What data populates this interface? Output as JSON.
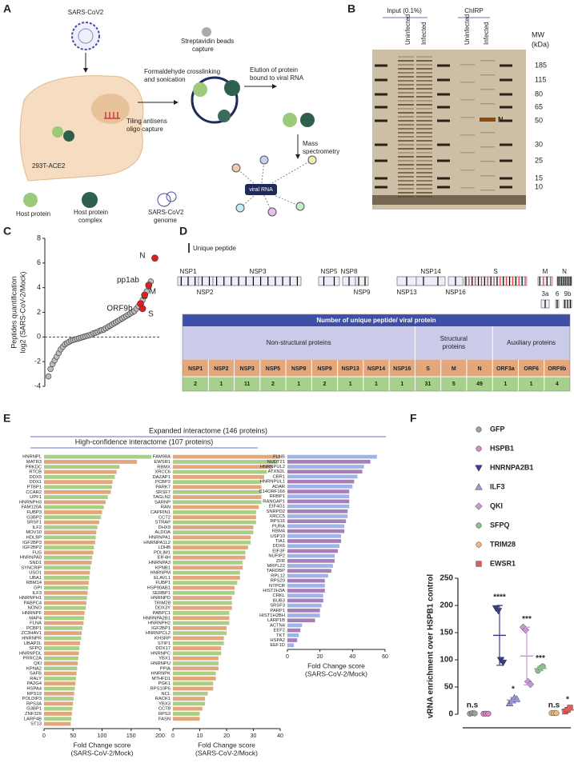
{
  "panel_labels": [
    "A",
    "B",
    "C",
    "D",
    "E",
    "F"
  ],
  "diagram_a": {
    "virus": "SARS-CoV2",
    "cell": "293T-ACE2",
    "steps": [
      [
        "Streptavidin beads",
        "capture"
      ],
      [
        "Formaldehyde crosslinking",
        "and sonication"
      ],
      [
        "Elution of protein",
        "bound to viral RNA"
      ],
      [
        "Tiling antisens",
        "oligo capture"
      ],
      [
        "Mass",
        "spectrometry"
      ]
    ],
    "legend": [
      [
        "Host protein"
      ],
      [
        "Host protein",
        "complex"
      ],
      [
        "SARS-CoV2",
        "genome"
      ]
    ],
    "network_center": "viral RNA"
  },
  "gel_b": {
    "groups": [
      "Input (0.1%)",
      "ChIRP"
    ],
    "lanes": [
      "Uninfected",
      "Infected",
      "Uninfected",
      "Infected"
    ],
    "mw_title": [
      "MW",
      "(kDa)"
    ],
    "mw_markers": [
      185,
      115,
      80,
      65,
      50,
      30,
      25,
      15,
      10
    ],
    "band_label": "N"
  },
  "peptide_map_d": {
    "legend": "Unique peptide",
    "proteins": [
      "NSP1",
      "NSP2",
      "NSP3",
      "NSP5",
      "NSP8",
      "NSP9",
      "NSP13",
      "NSP14",
      "NSP16",
      "S",
      "M",
      "N",
      "3a",
      "6",
      "9b"
    ]
  },
  "table_d": {
    "title": "Number of unique peptide/ viral protein",
    "groups": [
      [
        "Non-structural proteins"
      ],
      [
        "Structural",
        "proteins"
      ],
      [
        "Auxiliary proteins"
      ]
    ],
    "header": [
      "NSP1",
      "NSP2",
      "NSP3",
      "NSP5",
      "NSP8",
      "NSP9",
      "NSP13",
      "NSP14",
      "NSP16",
      "S",
      "M",
      "N",
      "ORF3a",
      "ORF6",
      "ORF9b"
    ],
    "values": [
      2,
      1,
      11,
      2,
      1,
      2,
      1,
      1,
      1,
      31,
      5,
      49,
      1,
      1,
      4
    ]
  },
  "figure_e": {
    "expanded": "Expanded interactome (146 proteins)",
    "high_confidence": "High-confidence interactome (107 proteins)"
  },
  "chart_data": [
    {
      "type": "scatter",
      "ylabel": [
        "Peptides quantification",
        "log2 (SARS-CoV-2/Mock)"
      ],
      "xlim": [
        0,
        54
      ],
      "ylim": [
        -4,
        8
      ],
      "yticks": [
        -4,
        -2,
        0,
        2,
        4,
        6,
        8
      ],
      "series": [
        {
          "color": "#bdbdbd",
          "x": [
            1,
            2,
            3,
            4,
            5,
            6,
            7,
            8,
            9,
            10,
            11,
            12,
            13,
            14,
            15,
            16,
            17,
            18,
            19,
            20,
            21,
            22,
            23,
            24,
            25,
            26,
            27,
            28,
            29,
            30,
            31,
            32,
            33,
            34,
            35,
            36,
            37,
            38,
            39,
            40,
            41,
            42,
            43,
            44,
            45,
            46,
            47,
            48,
            49,
            50,
            51
          ],
          "values": [
            -3.2,
            -2.6,
            -2.2,
            -1.9,
            -1.6,
            -1.3,
            -1.0,
            -0.8,
            -0.6,
            -0.5,
            -0.4,
            -0.3,
            -0.25,
            -0.2,
            -0.15,
            -0.1,
            -0.05,
            0,
            0.05,
            0.1,
            0.15,
            0.2,
            0.3,
            0.35,
            0.4,
            0.5,
            0.55,
            0.6,
            0.7,
            0.8,
            0.9,
            1.0,
            1.1,
            1.2,
            1.3,
            1.4,
            1.5,
            1.6,
            1.7,
            1.8,
            1.9,
            2.0,
            2.1,
            2.3,
            2.5,
            2.7,
            3.0,
            3.3,
            3.7,
            4.1,
            4.5
          ]
        },
        {
          "color": "#e02020",
          "x": [
            53,
            50,
            48,
            46,
            47
          ],
          "values": [
            6.4,
            4.2,
            3.4,
            2.7,
            2.3
          ],
          "point_labels": [
            "N",
            "pp1ab",
            "M",
            "ORF9b",
            "S"
          ]
        }
      ]
    },
    {
      "type": "barh",
      "xlabel": [
        "Fold Change score",
        "(SARS-CoV-2/Mock)"
      ],
      "xlim": [
        0,
        200
      ],
      "xticks": [
        0,
        50,
        100,
        150,
        200
      ],
      "palette": [
        "#a8cf85",
        "#e3a67c"
      ],
      "categories": [
        "HNRNPL",
        "MATR3",
        "PRKDC",
        "RTCB",
        "DDX5",
        "DDX1",
        "PTBP1",
        "CCAR2",
        "UPF1",
        "HNRNPH3",
        "FAM120A",
        "FUBP3",
        "G3BP2",
        "SRSF1",
        "ILF2",
        "MOV10",
        "HDLBP",
        "IGF2BP3",
        "IGF2BP2",
        "FUS",
        "HNRNPA0",
        "SND1",
        "SYNCRIP",
        "USO1",
        "UBA1",
        "RBM14",
        "GPI",
        "ILF3",
        "HNRNPH1",
        "PABPC4",
        "NONO",
        "HNRNPF",
        "MAP4",
        "FLNA",
        "PCBP1",
        "ZC3HAV1",
        "HNRNPR",
        "UBAP2L",
        "SFPQ",
        "HNRNPDL",
        "PRRC2A",
        "QKI",
        "KPNA2",
        "SAFB",
        "RALY",
        "PA2G4",
        "HSPA4",
        "RPS19",
        "POLDIP3",
        "RPS3A",
        "G3BP1",
        "ZNF326",
        "LARP4B",
        "ST13"
      ],
      "values": [
        185,
        160,
        130,
        125,
        122,
        118,
        117,
        115,
        110,
        106,
        103,
        100,
        98,
        95,
        92,
        90,
        89,
        88,
        86,
        85,
        83,
        82,
        80,
        79,
        78,
        77,
        76,
        75,
        74,
        73,
        72,
        70,
        69,
        68,
        66,
        65,
        64,
        62,
        61,
        60,
        59,
        58,
        57,
        56,
        55,
        54,
        53,
        52,
        51,
        50,
        49,
        48,
        47,
        46
      ]
    },
    {
      "type": "barh",
      "xlabel": [
        "Fold Change score",
        "(SARS-CoV-2/Mock)"
      ],
      "xlim": [
        0,
        40
      ],
      "xticks": [
        0,
        10,
        20,
        30,
        40
      ],
      "palette": [
        "#e3a67c",
        "#a8cf85"
      ],
      "categories": [
        "FAM98A",
        "EWSR1",
        "RBMX",
        "XRCC6",
        "DAZAP1",
        "PCBP2",
        "PARK7",
        "SRSF7",
        "TAGLN2",
        "SARNP",
        "RAN",
        "CAPRIN1",
        "CCT2",
        "STRAP",
        "DHX9",
        "ALDOA",
        "HNRNPA1",
        "HNRNPA1L2",
        "LDHB",
        "PDLIM1",
        "EIF4H",
        "HNRNPA3",
        "KPNB1",
        "HNRNPM",
        "ELAVL1",
        "FUBP1",
        "HSP90AB1",
        "SERBP1",
        "HNRNPD",
        "TRIM28",
        "DDX3Y",
        "PABPC1",
        "HNRNPA2B1",
        "HNRNPH2",
        "IGF2BP1",
        "HNRNPCL2",
        "KHSRP",
        "STIP1",
        "DDX17",
        "HNRNPC",
        "YBX1",
        "HNRNPU",
        "PPIA",
        "HNRNPK",
        "MTHFD1",
        "PGK1",
        "RPS10P5",
        "NCL",
        "RACK1",
        "YBX3",
        "CCT8",
        "RPS3",
        "FASN"
      ],
      "values": [
        40,
        39,
        37,
        35,
        34,
        33,
        33,
        33,
        33,
        33,
        32,
        31,
        31,
        31,
        30,
        30,
        29,
        29,
        28,
        27,
        27,
        26,
        26,
        25,
        25,
        24,
        23,
        23,
        22,
        22,
        22,
        21,
        21,
        21,
        20,
        20,
        19,
        19,
        18,
        18,
        17,
        17,
        17,
        16,
        16,
        15,
        15,
        13,
        12,
        12,
        11,
        10,
        10
      ]
    },
    {
      "type": "barh",
      "xlabel": [
        "Fold Change score",
        "(SARS-CoV-2/Mock)"
      ],
      "xlim": [
        0,
        60
      ],
      "xticks": [
        0,
        20,
        40,
        60
      ],
      "palette": [
        "#9fb3e8",
        "#a77fb8"
      ],
      "categories": [
        "FLNB",
        "NUDT21",
        "HNRNPUL2",
        "ATXN2L",
        "CBR1",
        "HNRNPUL1",
        "ADAR",
        "C14ORF166",
        "RRBP1",
        "RANGAP1",
        "EIF4G1",
        "SNRPD2",
        "XRCC5",
        "RPS16",
        "PURA",
        "RBM4",
        "USP10",
        "TIA1",
        "DDX6",
        "EIF3F",
        "NUFIP2",
        "ZFR",
        "MRPL22",
        "TARDBP",
        "RPL12",
        "RPS20",
        "NTPCR",
        "HIST2H3A",
        "CRKL",
        "BUB3",
        "SRSF3",
        "PARP1",
        "HIST1H2BH",
        "LARP1B",
        "ACTN4",
        "EEF2",
        "TKT",
        "HSPA2",
        "EEF1D"
      ],
      "values": [
        55,
        51,
        47,
        46,
        43,
        41,
        40,
        38,
        38,
        38,
        38,
        37,
        37,
        36,
        35,
        35,
        33,
        33,
        32,
        31,
        29,
        29,
        28,
        27,
        25,
        23,
        23,
        23,
        22,
        22,
        21,
        20,
        20,
        17,
        9,
        8,
        7,
        6,
        4
      ]
    },
    {
      "type": "dot",
      "ylabel": "vRNA enrichment over HSPB1 control",
      "ylim": [
        0,
        250
      ],
      "yticks": [
        0,
        50,
        100,
        150,
        200,
        250
      ],
      "series": [
        {
          "name": "GFP",
          "color": "#a0a0a0",
          "marker": "circle",
          "values": [
            1,
            2,
            1.5
          ],
          "annotation": "n.s"
        },
        {
          "name": "HSPB1",
          "color": "#d98abf",
          "marker": "circle",
          "values": [
            1,
            1,
            1
          ]
        },
        {
          "name": "HNRNPA2B1",
          "color": "#3b3b8f",
          "marker": "triangle-down",
          "values": [
            195,
            190,
            100,
            95
          ],
          "mean": 145,
          "sd": 55,
          "annotation": "****"
        },
        {
          "name": "ILF3",
          "color": "#9a9ad6",
          "marker": "triangle-up",
          "values": [
            20,
            25,
            30,
            28
          ],
          "mean": 26,
          "sd": 5,
          "annotation": "*"
        },
        {
          "name": "QKI",
          "color": "#c79ad6",
          "marker": "diamond",
          "values": [
            160,
            155,
            60,
            55
          ],
          "mean": 107,
          "sd": 53,
          "annotation": "***"
        },
        {
          "name": "SFPQ",
          "color": "#8fc08f",
          "marker": "circle",
          "values": [
            80,
            85,
            88
          ],
          "mean": 84,
          "sd": 4,
          "annotation": "***"
        },
        {
          "name": "TRIM28",
          "color": "#f2b97f",
          "marker": "circle",
          "values": [
            2,
            2,
            2
          ],
          "annotation": "n.s"
        },
        {
          "name": "EWSR1",
          "color": "#e25b5b",
          "marker": "square",
          "values": [
            5,
            8,
            12
          ],
          "mean": 8,
          "sd": 3,
          "annotation": "*"
        }
      ]
    }
  ]
}
